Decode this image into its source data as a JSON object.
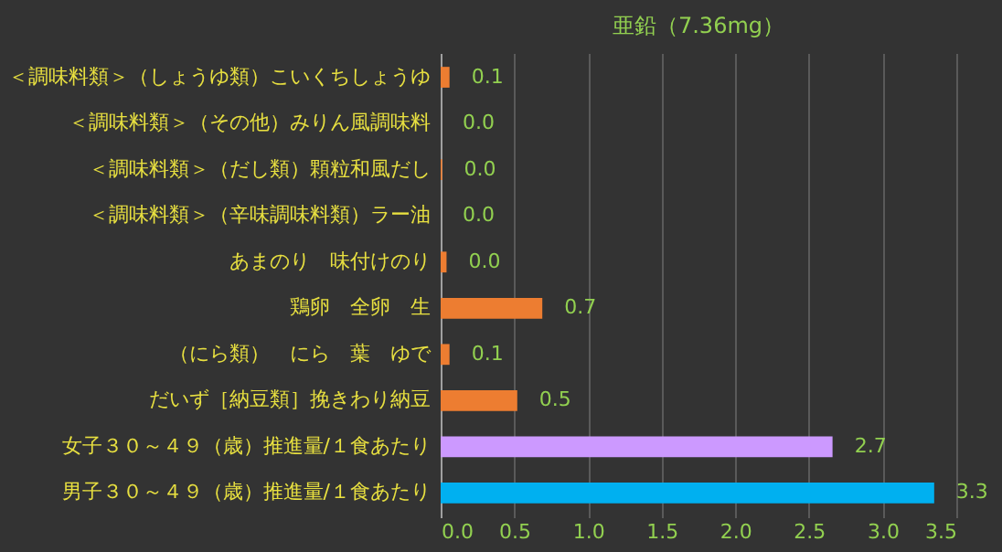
{
  "chart_data": {
    "type": "bar",
    "orientation": "horizontal",
    "title": "亜鉛（7.36mg）",
    "categories": [
      "＜調味料類＞（しょうゆ類）こいくちしょうゆ",
      "＜調味料類＞（その他）みりん風調味料",
      "＜調味料類＞（だし類）顆粒和風だし",
      "＜調味料類＞（辛味調味料類）ラー油",
      "あまのり　味付けのり",
      "鶏卵　全卵　生",
      "（にら類）　にら　葉　ゆで",
      "だいず［納豆類］挽きわり納豆",
      "女子３０～４９（歳）推進量/１食あたり",
      "男子３０～４９（歳）推進量/１食あたり"
    ],
    "values": [
      0.06,
      0.0,
      0.01,
      0.0,
      0.04,
      0.69,
      0.06,
      0.52,
      2.66,
      3.35
    ],
    "value_labels": [
      "0.1",
      "0.0",
      "0.0",
      "0.0",
      "0.0",
      "0.7",
      "0.1",
      "0.5",
      "2.7",
      "3.3"
    ],
    "colors": [
      "#ed7d31",
      "#ed7d31",
      "#ed7d31",
      "#ed7d31",
      "#ed7d31",
      "#ed7d31",
      "#ed7d31",
      "#ed7d31",
      "#cc99ff",
      "#00b0f0"
    ],
    "xlim": [
      0,
      3.5
    ],
    "xticks": [
      {
        "value": 0,
        "label": "0.0"
      },
      {
        "value": 0.5,
        "label": "0.5"
      },
      {
        "value": 1,
        "label": "1.0"
      },
      {
        "value": 1.5,
        "label": "1.5"
      },
      {
        "value": 2,
        "label": "2.0"
      },
      {
        "value": 2.5,
        "label": "2.5"
      },
      {
        "value": 3,
        "label": "3.0"
      },
      {
        "value": 3.5,
        "label": "3.5"
      }
    ],
    "grid": "x",
    "legend": false
  }
}
